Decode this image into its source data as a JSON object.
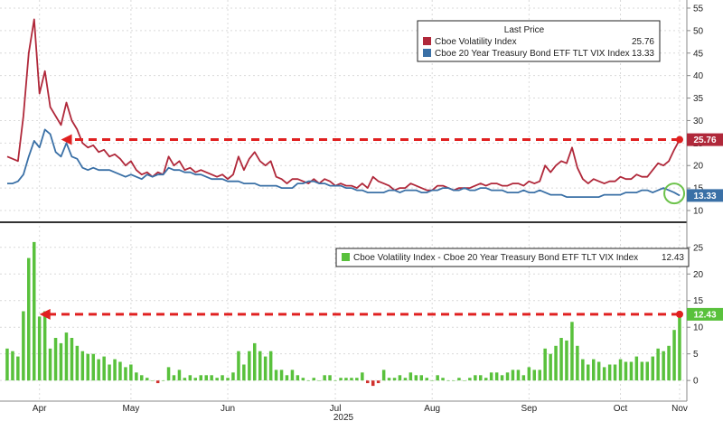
{
  "chart_data": [
    {
      "type": "line",
      "x_label": "2025",
      "x_ticks": [
        "Apr",
        "May",
        "Jun",
        "Jul",
        "Aug",
        "Sep",
        "Oct",
        "Nov"
      ],
      "y_ticks": [
        10,
        15,
        20,
        25,
        30,
        35,
        40,
        45,
        50,
        55
      ],
      "ylim": [
        9,
        56
      ],
      "legend_title": "Last Price",
      "legend_position": "top-right",
      "series": [
        {
          "name": "Cboe Volatility Index",
          "color": "#b0283a",
          "last_value": "25.76",
          "values": [
            22.0,
            21.5,
            21.0,
            31.0,
            45.0,
            52.5,
            36.0,
            41.0,
            33.0,
            31.0,
            29.0,
            34.0,
            30.0,
            28.0,
            25.0,
            24.0,
            24.5,
            23.0,
            23.5,
            22.0,
            22.5,
            21.5,
            20.0,
            21.0,
            19.0,
            18.0,
            18.5,
            17.5,
            18.5,
            18.0,
            22.0,
            20.0,
            21.0,
            19.0,
            19.5,
            18.5,
            19.0,
            18.5,
            18.0,
            17.5,
            18.0,
            17.0,
            18.0,
            22.0,
            19.0,
            21.5,
            23.0,
            21.0,
            20.0,
            21.0,
            17.5,
            17.0,
            16.0,
            17.0,
            17.0,
            16.5,
            16.0,
            17.0,
            16.0,
            17.0,
            16.5,
            15.5,
            16.0,
            15.5,
            15.5,
            15.0,
            16.0,
            15.0,
            17.5,
            16.5,
            16.0,
            15.5,
            14.5,
            15.0,
            15.0,
            16.0,
            15.5,
            15.0,
            14.5,
            14.5,
            15.5,
            15.5,
            15.0,
            14.5,
            15.0,
            15.0,
            15.0,
            15.5,
            16.0,
            15.5,
            16.0,
            16.0,
            15.5,
            15.5,
            16.0,
            16.0,
            15.5,
            16.5,
            16.0,
            16.5,
            20.0,
            18.5,
            20.0,
            21.0,
            20.5,
            24.0,
            19.5,
            17.0,
            16.0,
            17.0,
            16.5,
            16.0,
            16.5,
            16.5,
            17.5,
            17.0,
            17.0,
            18.0,
            17.5,
            17.5,
            19.0,
            20.5,
            20.0,
            21.0,
            23.5,
            25.76
          ]
        },
        {
          "name": "Cboe 20 Year Treasury Bond ETF TLT VIX Index",
          "color": "#3a70a6",
          "last_value": "13.33",
          "values": [
            16.0,
            16.0,
            16.5,
            18.0,
            22.0,
            25.5,
            24.0,
            28.0,
            27.0,
            23.0,
            22.0,
            25.0,
            22.0,
            21.5,
            19.5,
            19.0,
            19.5,
            19.0,
            19.0,
            19.0,
            18.5,
            18.0,
            17.5,
            18.0,
            17.5,
            17.0,
            18.0,
            17.5,
            18.0,
            18.0,
            19.5,
            19.0,
            19.0,
            18.5,
            18.5,
            18.0,
            18.0,
            17.5,
            17.0,
            17.0,
            17.0,
            16.5,
            16.5,
            16.5,
            16.0,
            16.0,
            16.0,
            15.5,
            15.5,
            15.5,
            15.5,
            15.0,
            15.0,
            15.0,
            16.0,
            16.0,
            16.5,
            16.5,
            16.0,
            16.0,
            15.5,
            15.5,
            15.5,
            15.0,
            15.0,
            14.5,
            14.5,
            14.0,
            14.0,
            14.0,
            14.0,
            14.5,
            14.5,
            14.0,
            14.5,
            14.5,
            14.5,
            14.0,
            14.0,
            14.5,
            14.5,
            15.0,
            15.0,
            14.5,
            14.5,
            15.0,
            14.5,
            14.5,
            15.0,
            15.0,
            14.5,
            14.5,
            14.5,
            14.0,
            14.0,
            14.0,
            14.5,
            14.0,
            14.0,
            14.5,
            14.0,
            13.5,
            13.5,
            13.5,
            13.0,
            13.0,
            13.0,
            13.0,
            13.0,
            13.0,
            13.0,
            13.5,
            13.5,
            13.5,
            13.5,
            14.0,
            14.0,
            14.0,
            14.5,
            14.5,
            14.0,
            14.5,
            15.0,
            14.5,
            14.0,
            13.33
          ]
        }
      ],
      "annotations": [
        {
          "type": "dashed-arrow",
          "color": "#e02020",
          "from": {
            "x": 125,
            "y": 25.76
          },
          "to": {
            "x": 10,
            "y": 25.76
          }
        },
        {
          "type": "circle",
          "color": "#6cc24a",
          "x": 124,
          "y": 13.8
        }
      ]
    },
    {
      "type": "bar",
      "x_ticks": [
        "Apr",
        "May",
        "Jun",
        "Jul",
        "Aug",
        "Sep",
        "Oct",
        "Nov"
      ],
      "y_ticks": [
        0,
        5,
        10,
        15,
        20,
        25
      ],
      "ylim": [
        -1.5,
        27
      ],
      "legend_position": "top-right",
      "series": [
        {
          "name": "Cboe Volatility Index - Cboe 20 Year Treasury Bond ETF TLT VIX Index",
          "color": "#59c13c",
          "last_value": "12.43",
          "values": [
            6.0,
            5.5,
            4.5,
            13.0,
            23.0,
            26.0,
            12.0,
            13.0,
            6.0,
            8.0,
            7.0,
            9.0,
            8.0,
            6.5,
            5.5,
            5.0,
            5.0,
            4.0,
            4.5,
            3.0,
            4.0,
            3.5,
            2.5,
            3.0,
            1.5,
            1.0,
            0.5,
            0.0,
            -0.5,
            0.0,
            2.5,
            1.0,
            2.0,
            0.5,
            1.0,
            0.5,
            1.0,
            1.0,
            1.0,
            0.5,
            1.0,
            0.5,
            1.5,
            5.5,
            3.0,
            5.5,
            7.0,
            5.5,
            4.5,
            5.5,
            2.0,
            2.0,
            1.0,
            2.0,
            1.0,
            0.5,
            0.0,
            0.5,
            0.0,
            1.0,
            1.0,
            0.0,
            0.5,
            0.5,
            0.5,
            0.5,
            1.5,
            -0.5,
            -1.0,
            -0.5,
            2.0,
            0.5,
            0.5,
            1.0,
            0.5,
            1.5,
            1.0,
            1.0,
            0.5,
            0.0,
            1.0,
            0.5,
            0.0,
            0.0,
            0.5,
            0.0,
            0.5,
            1.0,
            1.0,
            0.5,
            1.5,
            1.5,
            1.0,
            1.5,
            2.0,
            2.0,
            1.0,
            2.5,
            2.0,
            2.0,
            6.0,
            5.0,
            6.5,
            8.0,
            7.5,
            11.0,
            6.5,
            4.0,
            3.0,
            4.0,
            3.5,
            2.5,
            3.0,
            3.0,
            4.0,
            3.5,
            3.5,
            4.5,
            3.5,
            3.5,
            4.5,
            6.0,
            5.5,
            6.5,
            9.5,
            12.43
          ]
        }
      ],
      "annotations": [
        {
          "type": "dashed-arrow",
          "color": "#e02020",
          "from": {
            "x": 125,
            "y": 12.43
          },
          "to": {
            "x": 6,
            "y": 12.43
          }
        }
      ]
    }
  ]
}
